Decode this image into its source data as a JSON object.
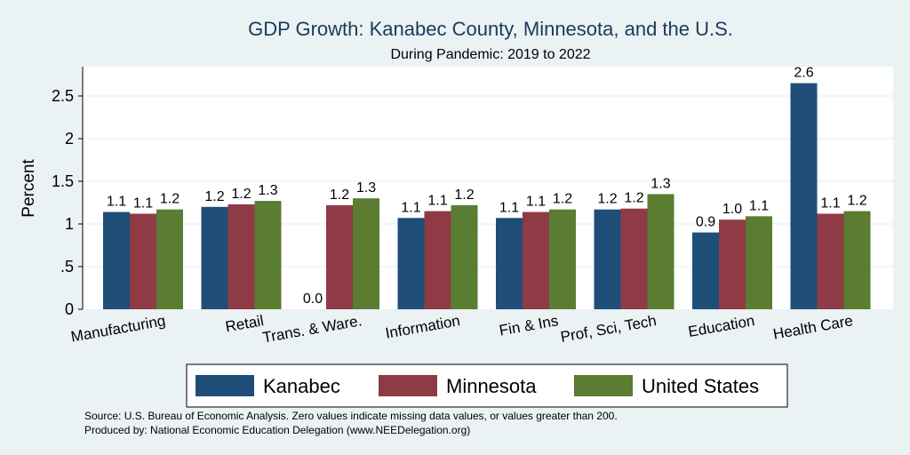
{
  "chart_data": {
    "type": "bar",
    "title": "GDP Growth: Kanabec County, Minnesota, and the U.S.",
    "subtitle": "During Pandemic: 2019 to 2022",
    "ylabel": "Percent",
    "ylim": [
      0,
      2.8
    ],
    "yticks": [
      {
        "value": 0,
        "label": "0"
      },
      {
        "value": 0.5,
        "label": ".5"
      },
      {
        "value": 1,
        "label": "1"
      },
      {
        "value": 1.5,
        "label": "1.5"
      },
      {
        "value": 2,
        "label": "2"
      },
      {
        "value": 2.5,
        "label": "2.5"
      }
    ],
    "grid": true,
    "legend_position": "bottom",
    "categories": [
      "Manufacturing",
      "Retail",
      "Trans. & Ware.",
      "Information",
      "Fin & Ins",
      "Prof, Sci, Tech",
      "Education",
      "Health Care"
    ],
    "series": [
      {
        "name": "Kanabec",
        "color": "#1f4e79",
        "values": [
          1.14,
          1.2,
          0.0,
          1.07,
          1.07,
          1.17,
          0.9,
          2.65
        ],
        "labels": [
          "1.1",
          "1.2",
          "0.0",
          "1.1",
          "1.1",
          "1.2",
          "0.9",
          "2.6"
        ]
      },
      {
        "name": "Minnesota",
        "color": "#8e3b46",
        "values": [
          1.12,
          1.23,
          1.22,
          1.15,
          1.14,
          1.18,
          1.05,
          1.12
        ],
        "labels": [
          "1.1",
          "1.2",
          "1.2",
          "1.1",
          "1.1",
          "1.2",
          "1.0",
          "1.1"
        ]
      },
      {
        "name": "United States",
        "color": "#5a7d31",
        "values": [
          1.17,
          1.27,
          1.3,
          1.22,
          1.17,
          1.35,
          1.09,
          1.15
        ],
        "labels": [
          "1.2",
          "1.3",
          "1.3",
          "1.2",
          "1.2",
          "1.3",
          "1.1",
          "1.2"
        ]
      }
    ],
    "notes": [
      "Source: U.S. Bureau of Economic Analysis. Zero values indicate missing data values, or values greater than 200.",
      "Produced by: National Economic Education Delegation (www.NEEDelegation.org)"
    ]
  }
}
